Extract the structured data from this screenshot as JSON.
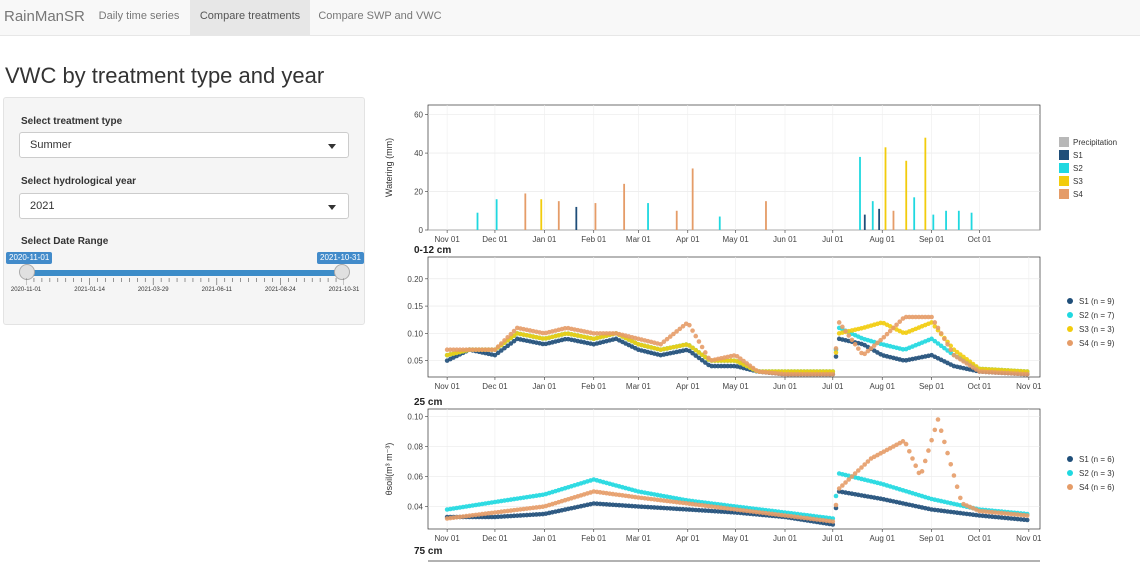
{
  "navbar": {
    "brand": "RainManSR",
    "tabs": [
      {
        "label": "Daily time series",
        "active": false
      },
      {
        "label": "Compare treatments",
        "active": true
      },
      {
        "label": "Compare SWP and VWC",
        "active": false
      }
    ]
  },
  "page_title": "VWC by treatment type and year",
  "sidebar": {
    "treatment_label": "Select treatment type",
    "treatment_value": "Summer",
    "year_label": "Select hydrological year",
    "year_value": "2021",
    "date_range_label": "Select Date Range",
    "date_start": "2020-11-01",
    "date_end": "2021-10-31",
    "date_ticks": [
      "2020-11-01",
      "2021-01-14",
      "2021-03-29",
      "2021-06-11",
      "2021-08-24",
      "2021-10-31"
    ]
  },
  "colors": {
    "precipitation": "#b8b8b8",
    "S1": "#1f4e79",
    "S2": "#1fd8e0",
    "S3": "#f2cc0c",
    "S4": "#e59c68",
    "accent": "#428bca"
  },
  "chart_data": [
    {
      "type": "bar",
      "title": "",
      "ylabel": "Watering (mm)",
      "ylim": [
        0,
        65
      ],
      "yticks": [
        0,
        20,
        40,
        60
      ],
      "x_tick_labels": [
        "Nov 01",
        "Dec 01",
        "Jan 01",
        "Feb 01",
        "Mar 01",
        "Apr 01",
        "May 01",
        "Jun 01",
        "Jul 01",
        "Aug 01",
        "Sep 01",
        "Oct 01"
      ],
      "legend": [
        "Precipitation",
        "S1",
        "S2",
        "S3",
        "S4"
      ],
      "legend_position": "right",
      "bars": [
        {
          "date": "2020-11-20",
          "value": 9,
          "series": "S2"
        },
        {
          "date": "2020-12-02",
          "value": 16,
          "series": "S2"
        },
        {
          "date": "2020-12-20",
          "value": 19,
          "series": "S4"
        },
        {
          "date": "2020-12-30",
          "value": 16,
          "series": "S3"
        },
        {
          "date": "2021-01-10",
          "value": 15,
          "series": "S4"
        },
        {
          "date": "2021-01-21",
          "value": 12,
          "series": "S1"
        },
        {
          "date": "2021-02-02",
          "value": 14,
          "series": "S4"
        },
        {
          "date": "2021-02-20",
          "value": 24,
          "series": "S4"
        },
        {
          "date": "2021-03-07",
          "value": 14,
          "series": "S2"
        },
        {
          "date": "2021-03-25",
          "value": 10,
          "series": "S4"
        },
        {
          "date": "2021-04-04",
          "value": 32,
          "series": "S4"
        },
        {
          "date": "2021-04-21",
          "value": 7,
          "series": "S2"
        },
        {
          "date": "2021-05-20",
          "value": 15,
          "series": "S4"
        },
        {
          "date": "2021-07-18",
          "value": 38,
          "series": "S2"
        },
        {
          "date": "2021-07-21",
          "value": 8,
          "series": "S1"
        },
        {
          "date": "2021-07-26",
          "value": 15,
          "series": "S2"
        },
        {
          "date": "2021-07-30",
          "value": 11,
          "series": "S1"
        },
        {
          "date": "2021-08-03",
          "value": 43,
          "series": "S3"
        },
        {
          "date": "2021-08-08",
          "value": 10,
          "series": "S4"
        },
        {
          "date": "2021-08-16",
          "value": 36,
          "series": "S3"
        },
        {
          "date": "2021-08-21",
          "value": 17,
          "series": "S2"
        },
        {
          "date": "2021-08-28",
          "value": 48,
          "series": "S3"
        },
        {
          "date": "2021-09-02",
          "value": 8,
          "series": "S2"
        },
        {
          "date": "2021-09-10",
          "value": 10,
          "series": "S2"
        },
        {
          "date": "2021-09-18",
          "value": 10,
          "series": "S2"
        },
        {
          "date": "2021-09-26",
          "value": 9,
          "series": "S2"
        }
      ]
    },
    {
      "type": "scatter",
      "title": "0-12 cm",
      "ylabel": "",
      "ylim": [
        0.02,
        0.24
      ],
      "yticks": [
        0.05,
        0.1,
        0.15,
        0.2
      ],
      "x_tick_labels": [
        "Nov 01",
        "Dec 01",
        "Jan 01",
        "Feb 01",
        "Mar 01",
        "Apr 01",
        "May 01",
        "Jun 01",
        "Jul 01",
        "Aug 01",
        "Sep 01",
        "Oct 01",
        "Nov 01"
      ],
      "legend_position": "right",
      "series": [
        {
          "name": "S1 (n = 9)",
          "key": "S1",
          "points": [
            [
              "2020-11-01",
              0.05
            ],
            [
              "2020-11-15",
              0.07
            ],
            [
              "2020-12-01",
              0.06
            ],
            [
              "2020-12-15",
              0.09
            ],
            [
              "2021-01-01",
              0.08
            ],
            [
              "2021-01-15",
              0.09
            ],
            [
              "2021-02-01",
              0.08
            ],
            [
              "2021-02-15",
              0.09
            ],
            [
              "2021-03-01",
              0.07
            ],
            [
              "2021-03-15",
              0.06
            ],
            [
              "2021-04-01",
              0.07
            ],
            [
              "2021-04-15",
              0.04
            ],
            [
              "2021-05-01",
              0.04
            ],
            [
              "2021-05-15",
              0.03
            ],
            [
              "2021-06-01",
              0.025
            ],
            [
              "2021-07-01",
              0.025
            ],
            [
              "2021-07-05",
              0.09
            ],
            [
              "2021-07-20",
              0.08
            ],
            [
              "2021-08-01",
              0.06
            ],
            [
              "2021-08-15",
              0.05
            ],
            [
              "2021-09-01",
              0.06
            ],
            [
              "2021-09-15",
              0.04
            ],
            [
              "2021-10-01",
              0.03
            ],
            [
              "2021-10-31",
              0.025
            ]
          ]
        },
        {
          "name": "S2 (n = 7)",
          "key": "S2",
          "points": [
            [
              "2020-11-01",
              0.06
            ],
            [
              "2020-11-15",
              0.07
            ],
            [
              "2020-12-01",
              0.07
            ],
            [
              "2020-12-15",
              0.1
            ],
            [
              "2021-01-01",
              0.09
            ],
            [
              "2021-01-15",
              0.1
            ],
            [
              "2021-02-01",
              0.09
            ],
            [
              "2021-02-15",
              0.1
            ],
            [
              "2021-03-01",
              0.08
            ],
            [
              "2021-03-15",
              0.07
            ],
            [
              "2021-04-01",
              0.08
            ],
            [
              "2021-04-15",
              0.05
            ],
            [
              "2021-05-01",
              0.05
            ],
            [
              "2021-05-15",
              0.03
            ],
            [
              "2021-06-01",
              0.03
            ],
            [
              "2021-07-01",
              0.03
            ],
            [
              "2021-07-05",
              0.11
            ],
            [
              "2021-07-20",
              0.09
            ],
            [
              "2021-08-01",
              0.08
            ],
            [
              "2021-08-15",
              0.07
            ],
            [
              "2021-09-01",
              0.09
            ],
            [
              "2021-09-15",
              0.06
            ],
            [
              "2021-10-01",
              0.035
            ],
            [
              "2021-10-31",
              0.03
            ]
          ]
        },
        {
          "name": "S3 (n = 3)",
          "key": "S3",
          "points": [
            [
              "2020-11-01",
              0.06
            ],
            [
              "2020-11-15",
              0.07
            ],
            [
              "2020-12-01",
              0.07
            ],
            [
              "2020-12-15",
              0.1
            ],
            [
              "2021-01-01",
              0.09
            ],
            [
              "2021-01-15",
              0.1
            ],
            [
              "2021-02-01",
              0.09
            ],
            [
              "2021-02-15",
              0.1
            ],
            [
              "2021-03-01",
              0.08
            ],
            [
              "2021-03-15",
              0.07
            ],
            [
              "2021-04-01",
              0.08
            ],
            [
              "2021-04-15",
              0.05
            ],
            [
              "2021-05-01",
              0.05
            ],
            [
              "2021-05-15",
              0.03
            ],
            [
              "2021-06-01",
              0.03
            ],
            [
              "2021-07-01",
              0.03
            ],
            [
              "2021-07-05",
              0.1
            ],
            [
              "2021-07-20",
              0.11
            ],
            [
              "2021-08-01",
              0.12
            ],
            [
              "2021-08-15",
              0.1
            ],
            [
              "2021-09-01",
              0.12
            ],
            [
              "2021-09-15",
              0.07
            ],
            [
              "2021-10-01",
              0.035
            ],
            [
              "2021-10-31",
              0.03
            ]
          ]
        },
        {
          "name": "S4 (n = 9)",
          "key": "S4",
          "points": [
            [
              "2020-11-01",
              0.07
            ],
            [
              "2020-11-15",
              0.07
            ],
            [
              "2020-12-01",
              0.07
            ],
            [
              "2020-12-15",
              0.11
            ],
            [
              "2021-01-01",
              0.1
            ],
            [
              "2021-01-15",
              0.11
            ],
            [
              "2021-02-01",
              0.1
            ],
            [
              "2021-02-15",
              0.1
            ],
            [
              "2021-03-01",
              0.09
            ],
            [
              "2021-03-15",
              0.08
            ],
            [
              "2021-04-01",
              0.12
            ],
            [
              "2021-04-15",
              0.05
            ],
            [
              "2021-05-01",
              0.06
            ],
            [
              "2021-05-15",
              0.03
            ],
            [
              "2021-06-01",
              0.025
            ],
            [
              "2021-07-01",
              0.025
            ],
            [
              "2021-07-05",
              0.12
            ],
            [
              "2021-07-20",
              0.06
            ],
            [
              "2021-08-01",
              0.09
            ],
            [
              "2021-08-15",
              0.13
            ],
            [
              "2021-09-01",
              0.13
            ],
            [
              "2021-09-15",
              0.06
            ],
            [
              "2021-10-01",
              0.03
            ],
            [
              "2021-10-31",
              0.025
            ]
          ]
        }
      ]
    },
    {
      "type": "scatter",
      "title": "25 cm",
      "ylabel": "θsoil(m³ m⁻³)",
      "ylim": [
        0.025,
        0.105
      ],
      "yticks": [
        0.04,
        0.06,
        0.08,
        0.1
      ],
      "x_tick_labels": [
        "Nov 01",
        "Dec 01",
        "Jan 01",
        "Feb 01",
        "Mar 01",
        "Apr 01",
        "May 01",
        "Jun 01",
        "Jul 01",
        "Aug 01",
        "Sep 01",
        "Oct 01",
        "Nov 01"
      ],
      "legend_position": "right",
      "series": [
        {
          "name": "S1 (n = 6)",
          "key": "S1",
          "points": [
            [
              "2020-11-01",
              0.033
            ],
            [
              "2020-12-01",
              0.033
            ],
            [
              "2021-01-01",
              0.035
            ],
            [
              "2021-02-01",
              0.042
            ],
            [
              "2021-03-01",
              0.04
            ],
            [
              "2021-04-01",
              0.038
            ],
            [
              "2021-05-01",
              0.036
            ],
            [
              "2021-06-01",
              0.033
            ],
            [
              "2021-07-01",
              0.028
            ],
            [
              "2021-07-05",
              0.05
            ],
            [
              "2021-08-01",
              0.045
            ],
            [
              "2021-09-01",
              0.038
            ],
            [
              "2021-10-01",
              0.034
            ],
            [
              "2021-10-31",
              0.031
            ]
          ]
        },
        {
          "name": "S2 (n = 3)",
          "key": "S2",
          "points": [
            [
              "2020-11-01",
              0.038
            ],
            [
              "2020-12-01",
              0.043
            ],
            [
              "2021-01-01",
              0.048
            ],
            [
              "2021-02-01",
              0.058
            ],
            [
              "2021-03-01",
              0.05
            ],
            [
              "2021-04-01",
              0.044
            ],
            [
              "2021-05-01",
              0.04
            ],
            [
              "2021-06-01",
              0.036
            ],
            [
              "2021-07-01",
              0.032
            ],
            [
              "2021-07-05",
              0.062
            ],
            [
              "2021-08-01",
              0.055
            ],
            [
              "2021-09-01",
              0.045
            ],
            [
              "2021-10-01",
              0.038
            ],
            [
              "2021-10-31",
              0.035
            ]
          ]
        },
        {
          "name": "S4 (n = 6)",
          "key": "S4",
          "points": [
            [
              "2020-11-01",
              0.032
            ],
            [
              "2020-12-01",
              0.036
            ],
            [
              "2021-01-01",
              0.04
            ],
            [
              "2021-02-01",
              0.05
            ],
            [
              "2021-03-01",
              0.046
            ],
            [
              "2021-04-01",
              0.042
            ],
            [
              "2021-05-01",
              0.038
            ],
            [
              "2021-06-01",
              0.034
            ],
            [
              "2021-07-01",
              0.03
            ],
            [
              "2021-07-05",
              0.052
            ],
            [
              "2021-07-25",
              0.072
            ],
            [
              "2021-08-15",
              0.084
            ],
            [
              "2021-08-25",
              0.06
            ],
            [
              "2021-09-05",
              0.098
            ],
            [
              "2021-09-20",
              0.042
            ],
            [
              "2021-10-01",
              0.037
            ],
            [
              "2021-10-31",
              0.034
            ]
          ]
        }
      ]
    }
  ],
  "next_panel_title": "75 cm"
}
